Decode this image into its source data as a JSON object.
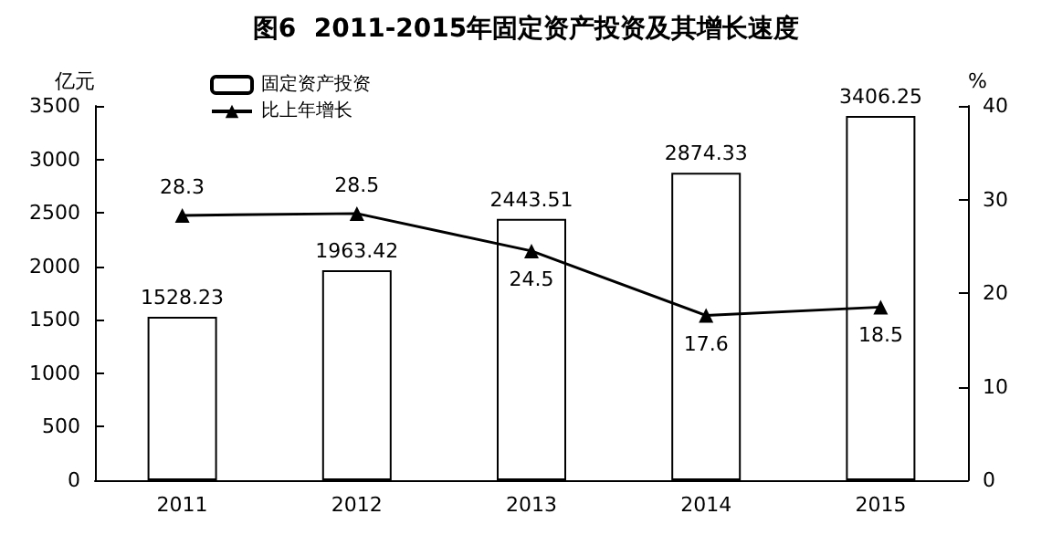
{
  "chart_data": {
    "type": "bar",
    "title": "图6  2011-2015年固定资产投资及其增长速度",
    "ylabel": "亿元",
    "y2label": "%",
    "categories": [
      "2011",
      "2012",
      "2013",
      "2014",
      "2015"
    ],
    "series": [
      {
        "name": "固定资产投资",
        "color": "#ffffff",
        "values": [
          1528.23,
          1963.42,
          2443.51,
          2874.33,
          3406.25
        ]
      },
      {
        "name": "比上年增长",
        "type": "line",
        "axis": "y2",
        "color": "#000000",
        "marker": "triangle",
        "values": [
          28.3,
          28.5,
          24.5,
          17.6,
          18.5
        ]
      }
    ],
    "ylim": [
      0,
      3500
    ],
    "yticks": [
      0,
      500,
      1000,
      1500,
      2000,
      2500,
      3000,
      3500
    ],
    "y2lim": [
      0,
      40
    ],
    "y2ticks": [
      0,
      10,
      20,
      30,
      40
    ],
    "data_labels": true,
    "legend": "top left",
    "grid": false
  }
}
